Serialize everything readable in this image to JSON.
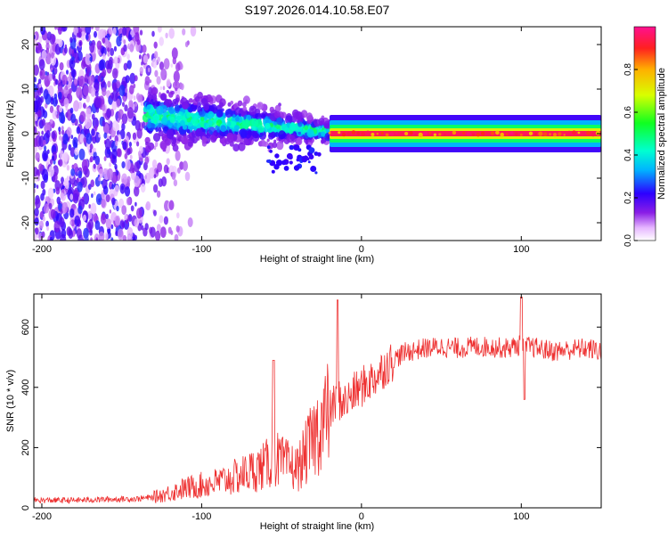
{
  "title": "S197.2026.014.10.58.E07",
  "colors": {
    "snr_line": "#ee3030",
    "axis": "#000000"
  },
  "chart_data": [
    {
      "type": "heatmap",
      "xlabel": "Height of straight line (km)",
      "ylabel": "Frequency (Hz)",
      "xlim": [
        -205,
        150
      ],
      "ylim": [
        -24,
        24
      ],
      "xticks": [
        -200,
        -100,
        0,
        100
      ],
      "yticks": [
        -20,
        -10,
        0,
        10,
        20
      ],
      "colorbar": {
        "label": "Normalized spectral amplitude",
        "range": [
          0,
          1
        ],
        "ticks": [
          0.0,
          0.2,
          0.4,
          0.6,
          0.8
        ]
      },
      "description_segments": [
        {
          "x_range": [
            -205,
            -125
          ],
          "freq_range": [
            -24,
            24
          ],
          "amplitude": 0.12
        },
        {
          "x_range": [
            -135,
            -20
          ],
          "freq_center": 4,
          "freq_spread": 6,
          "amplitude": 0.3
        },
        {
          "x_range": [
            -20,
            150
          ],
          "freq_center": 0,
          "freq_spread": 1,
          "amplitude": 0.95
        }
      ]
    },
    {
      "type": "line",
      "xlabel": "Height of straight line (km)",
      "ylabel": "SNR (10 * v/v)",
      "xlim": [
        -205,
        150
      ],
      "ylim": [
        0,
        710
      ],
      "xticks": [
        -200,
        -100,
        0,
        100
      ],
      "yticks": [
        0,
        200,
        400,
        600
      ],
      "series": [
        {
          "name": "SNR",
          "x": [
            -205,
            -180,
            -160,
            -140,
            -130,
            -120,
            -110,
            -100,
            -90,
            -80,
            -70,
            -60,
            -55,
            -50,
            -40,
            -35,
            -30,
            -25,
            -20,
            -15,
            -10,
            -5,
            0,
            5,
            10,
            15,
            20,
            25,
            30,
            40,
            50,
            60,
            70,
            80,
            90,
            100,
            110,
            120,
            130,
            140,
            150
          ],
          "y": [
            25,
            25,
            28,
            30,
            35,
            50,
            65,
            75,
            85,
            100,
            120,
            140,
            170,
            150,
            130,
            180,
            230,
            280,
            320,
            360,
            350,
            380,
            400,
            420,
            440,
            470,
            490,
            510,
            520,
            530,
            535,
            530,
            535,
            535,
            530,
            540,
            530,
            520,
            525,
            530,
            520
          ]
        }
      ],
      "spikes": [
        {
          "x": -55,
          "y": 490
        },
        {
          "x": -15,
          "y": 690
        },
        {
          "x": 100,
          "y": 700
        },
        {
          "x": 102,
          "y": 360
        }
      ]
    }
  ]
}
